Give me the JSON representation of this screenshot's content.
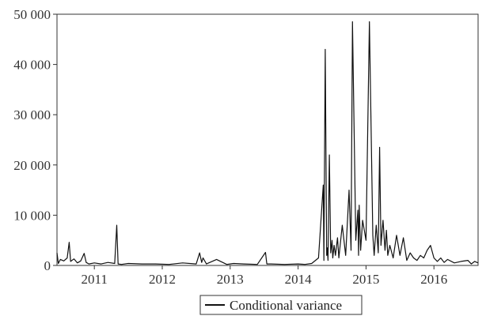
{
  "chart_data": {
    "type": "line",
    "title": "",
    "xlabel": "",
    "ylabel": "",
    "legend_position": "bottom-center",
    "grid": false,
    "xlim": [
      2010.45,
      2016.65
    ],
    "ylim": [
      0,
      50000
    ],
    "x_ticks": [
      {
        "value": 2011.0,
        "label": "2011"
      },
      {
        "value": 2012.0,
        "label": "2012"
      },
      {
        "value": 2013.0,
        "label": "2013"
      },
      {
        "value": 2014.0,
        "label": "2014"
      },
      {
        "value": 2015.0,
        "label": "2015"
      },
      {
        "value": 2016.0,
        "label": "2016"
      }
    ],
    "y_ticks": [
      {
        "value": 0,
        "label": "0"
      },
      {
        "value": 10000,
        "label": "10 000"
      },
      {
        "value": 20000,
        "label": "20 000"
      },
      {
        "value": 30000,
        "label": "30 000"
      },
      {
        "value": 40000,
        "label": "40 000"
      },
      {
        "value": 50000,
        "label": "50 000"
      }
    ],
    "series": [
      {
        "name": "Conditional variance",
        "color": "#111111",
        "x": [
          2010.45,
          2010.47,
          2010.5,
          2010.55,
          2010.6,
          2010.63,
          2010.65,
          2010.7,
          2010.75,
          2010.8,
          2010.85,
          2010.88,
          2010.92,
          2011.0,
          2011.1,
          2011.2,
          2011.3,
          2011.33,
          2011.35,
          2011.4,
          2011.5,
          2011.7,
          2011.9,
          2012.1,
          2012.3,
          2012.5,
          2012.55,
          2012.58,
          2012.6,
          2012.65,
          2012.8,
          2012.95,
          2013.0,
          2013.05,
          2013.2,
          2013.4,
          2013.52,
          2013.54,
          2013.6,
          2013.8,
          2014.0,
          2014.1,
          2014.2,
          2014.3,
          2014.37,
          2014.38,
          2014.4,
          2014.42,
          2014.43,
          2014.44,
          2014.46,
          2014.48,
          2014.5,
          2014.51,
          2014.53,
          2014.55,
          2014.58,
          2014.6,
          2014.65,
          2014.7,
          2014.75,
          2014.78,
          2014.8,
          2014.85,
          2014.88,
          2014.89,
          2014.9,
          2014.92,
          2014.95,
          2015.0,
          2015.05,
          2015.1,
          2015.12,
          2015.15,
          2015.18,
          2015.2,
          2015.22,
          2015.25,
          2015.28,
          2015.3,
          2015.32,
          2015.35,
          2015.4,
          2015.45,
          2015.5,
          2015.55,
          2015.6,
          2015.65,
          2015.7,
          2015.75,
          2015.8,
          2015.85,
          2015.9,
          2015.95,
          2016.0,
          2016.05,
          2016.1,
          2016.15,
          2016.2,
          2016.3,
          2016.4,
          2016.5,
          2016.55,
          2016.6,
          2016.65
        ],
        "values": [
          2500,
          400,
          1200,
          900,
          1500,
          4600,
          800,
          1300,
          500,
          900,
          2400,
          600,
          300,
          500,
          300,
          600,
          400,
          8000,
          300,
          200,
          400,
          300,
          300,
          200,
          500,
          300,
          2500,
          600,
          1500,
          300,
          1200,
          200,
          300,
          400,
          300,
          200,
          2600,
          300,
          300,
          200,
          300,
          200,
          400,
          1500,
          16000,
          1000,
          43000,
          2000,
          3500,
          1000,
          22000,
          2500,
          5000,
          1500,
          4000,
          2000,
          5500,
          1500,
          8000,
          2000,
          15000,
          3000,
          48500,
          5000,
          11000,
          2000,
          12000,
          3000,
          9000,
          5000,
          48500,
          6000,
          2000,
          8000,
          2500,
          23500,
          4000,
          9000,
          3000,
          7000,
          2000,
          4000,
          1500,
          6000,
          2000,
          5500,
          1000,
          2500,
          1500,
          1000,
          2000,
          1500,
          3000,
          4000,
          1500,
          800,
          1500,
          600,
          1200,
          500,
          800,
          1000,
          300,
          800,
          500
        ]
      }
    ]
  }
}
